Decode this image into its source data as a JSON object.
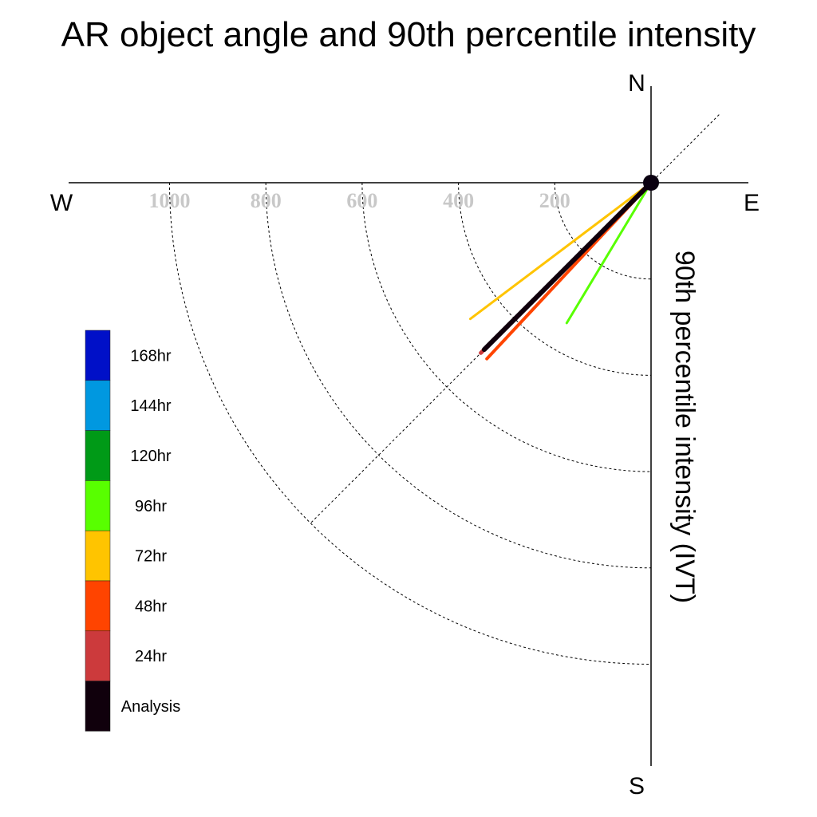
{
  "chart_data": {
    "type": "polar-vector",
    "title": "AR object angle and 90th percentile intensity",
    "axis_label": "90th percentile intensity (IVT)",
    "directions": {
      "north": "N",
      "south": "S",
      "east": "E",
      "west": "W"
    },
    "radial_ticks": [
      200,
      400,
      600,
      800,
      1000
    ],
    "radial_tick_labels": [
      "200",
      "400",
      "600",
      "800",
      "1000"
    ],
    "rmax": 1000,
    "grid": true,
    "diagonal_guide_bearings": [
      45,
      225
    ],
    "legend_position": "left",
    "legend": [
      {
        "label": "168hr",
        "color": "#0010c8"
      },
      {
        "label": "144hr",
        "color": "#0098e0"
      },
      {
        "label": "120hr",
        "color": "#009a17"
      },
      {
        "label": "96hr",
        "color": "#58ff00"
      },
      {
        "label": "72hr",
        "color": "#ffc400"
      },
      {
        "label": "48hr",
        "color": "#ff4400"
      },
      {
        "label": "24hr",
        "color": "#cc3a3c"
      },
      {
        "label": "Analysis",
        "color": "#10000c"
      }
    ],
    "series": [
      {
        "name": "72hr",
        "color": "#ffc400",
        "bearing_deg": 233,
        "intensity": 470,
        "width": 3
      },
      {
        "name": "96hr",
        "color": "#58ff00",
        "bearing_deg": 211,
        "intensity": 340,
        "width": 3
      },
      {
        "name": "48hr",
        "color": "#ff4400",
        "bearing_deg": 223,
        "intensity": 500,
        "width": 4
      },
      {
        "name": "24hr",
        "color": "#cc3a3c",
        "bearing_deg": 225,
        "intensity": 500,
        "width": 5
      },
      {
        "name": "Analysis",
        "color": "#10000c",
        "bearing_deg": 225,
        "intensity": 490,
        "width": 6
      }
    ]
  }
}
